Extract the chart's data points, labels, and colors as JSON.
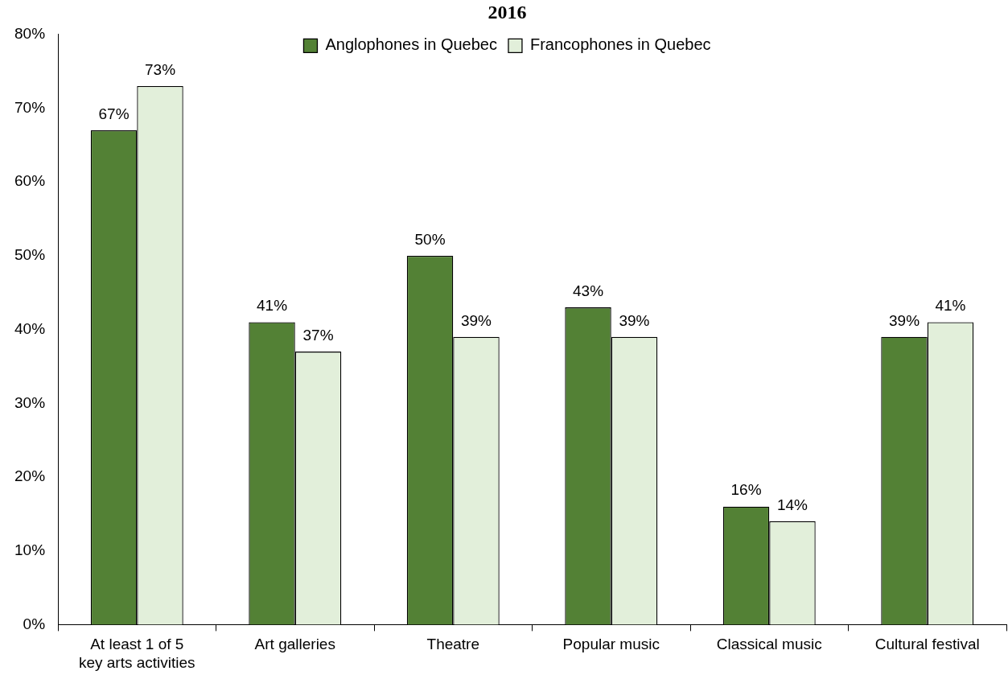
{
  "chart_data": {
    "type": "bar",
    "title": "2016",
    "categories": [
      "At least 1 of 5 key arts activities",
      "Art galleries",
      "Theatre",
      "Popular music",
      "Classical music",
      "Cultural festival"
    ],
    "series": [
      {
        "name": "Anglophones in Quebec",
        "color": "#538135",
        "values": [
          67,
          41,
          50,
          43,
          16,
          39
        ],
        "value_labels": [
          "67%",
          "41%",
          "50%",
          "43%",
          "16%",
          "39%"
        ]
      },
      {
        "name": "Francophones in Quebec",
        "color": "#e2efda",
        "values": [
          73,
          37,
          39,
          39,
          14,
          41
        ],
        "value_labels": [
          "73%",
          "37%",
          "39%",
          "39%",
          "14%",
          "41%"
        ]
      }
    ],
    "ylim": [
      0,
      80
    ],
    "yticks": [
      {
        "value": 0,
        "label": "0%"
      },
      {
        "value": 10,
        "label": "10%"
      },
      {
        "value": 20,
        "label": "20%"
      },
      {
        "value": 30,
        "label": "30%"
      },
      {
        "value": 40,
        "label": "40%"
      },
      {
        "value": 50,
        "label": "50%"
      },
      {
        "value": 60,
        "label": "60%"
      },
      {
        "value": 70,
        "label": "70%"
      },
      {
        "value": 80,
        "label": "80%"
      }
    ],
    "legend": "top"
  }
}
